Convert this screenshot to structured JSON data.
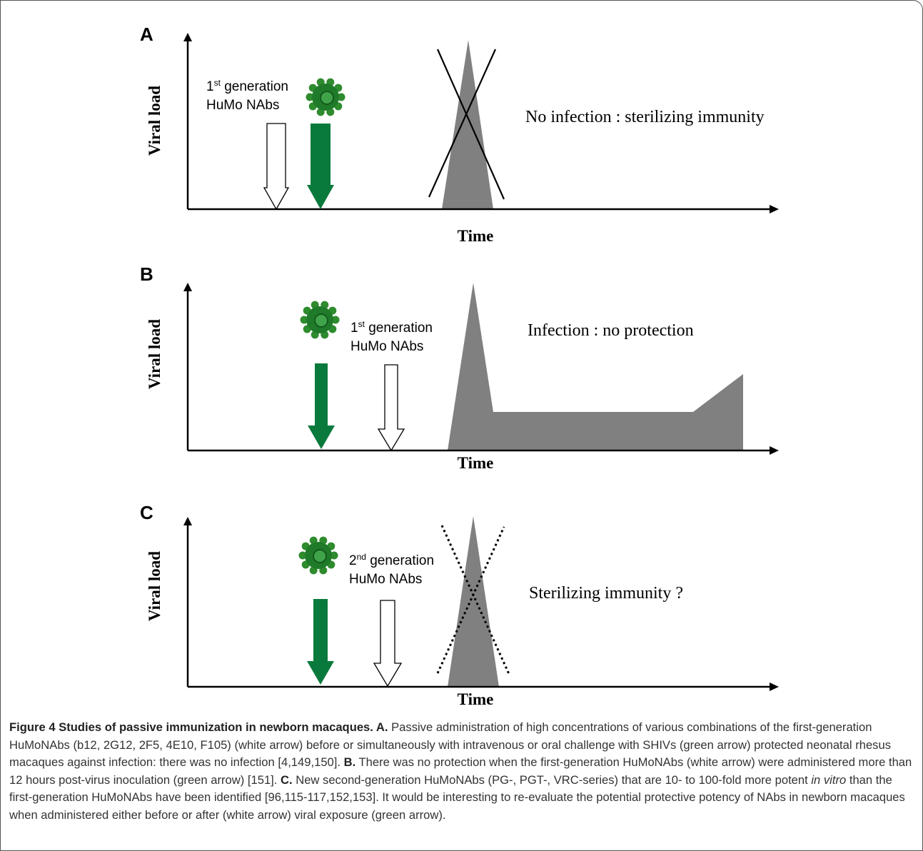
{
  "figure": {
    "panels": [
      {
        "letter": "A",
        "y_label": "Viral load",
        "x_label": "Time",
        "antibody_label": {
          "number": "1",
          "suffix": "st",
          "text": " generation",
          "line2": "HuMo NAbs"
        },
        "outcome": "No infection : sterilizing immunity"
      },
      {
        "letter": "B",
        "y_label": "Viral load",
        "x_label": "Time",
        "antibody_label": {
          "number": "1",
          "suffix": "st",
          "text": " generation",
          "line2": "HuMo NAbs"
        },
        "outcome": "Infection : no protection"
      },
      {
        "letter": "C",
        "y_label": "Viral load",
        "x_label": "Time",
        "antibody_label": {
          "number": "2",
          "suffix": "nd",
          "text": " generation",
          "line2": "HuMo NAbs"
        },
        "outcome": "Sterilizing immunity ?"
      }
    ],
    "caption": [
      {
        "text": "Figure 4 Studies of passive immunization in newborn macaques. A.",
        "style": "bold"
      },
      {
        "text": " Passive administration of high concentrations of various combinations of the first-generation HuMoNAbs (b12, 2G12, 2F5, 4E10, F105) (white arrow) before or simultaneously with intravenous or oral challenge with SHIVs (green arrow) protected neonatal rhesus macaques against infection: there was no infection [4,149,150]. ",
        "style": "normal"
      },
      {
        "text": "B.",
        "style": "bold"
      },
      {
        "text": " There was no protection when the first-generation HuMoNAbs (white arrow) were administered more than 12 hours post-virus inoculation (green arrow) [151]. ",
        "style": "normal"
      },
      {
        "text": "C.",
        "style": "bold"
      },
      {
        "text": " New second-generation HuMoNAbs (PG-, PGT-, VRC-series) that are 10- to 100-fold more potent ",
        "style": "normal"
      },
      {
        "text": "in vitro",
        "style": "italic"
      },
      {
        "text": " than the first-generation HuMoNAbs have been identified [96,115-117,152,153]. It would be interesting to re-evaluate the potential protective potency of NAbs in newborn macaques when administered either before or after (white arrow) viral exposure (green arrow).",
        "style": "normal"
      }
    ]
  }
}
